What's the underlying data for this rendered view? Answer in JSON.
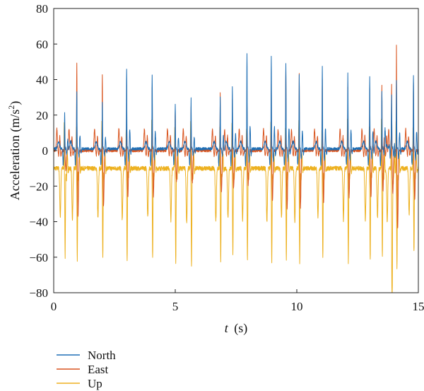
{
  "chart_data": {
    "type": "line",
    "xlabel_var": "t",
    "xlabel_unit": "(s)",
    "ylabel_main": "Acceleration (m/s",
    "ylabel_sup": "2",
    "ylabel_close": ")",
    "xlim": [
      0,
      15
    ],
    "ylim": [
      -80,
      80
    ],
    "xticks": [
      0,
      5,
      10,
      15
    ],
    "xtick_labels": [
      "0",
      "5",
      "10",
      "15"
    ],
    "yticks": [
      80,
      60,
      40,
      20,
      0,
      -20,
      -40,
      -60,
      -80
    ],
    "ytick_labels": [
      "80",
      "60",
      "40",
      "20",
      "0",
      "−20",
      "−40",
      "−60",
      "−80"
    ],
    "grid": false,
    "legend_position": "bottom-left, below plot",
    "series": [
      {
        "name": "North",
        "color": "#1f6fb5",
        "baseline": 1,
        "peaks": [
          20,
          32,
          26,
          45,
          41,
          25,
          28,
          29,
          35,
          54,
          52,
          48,
          42,
          46,
          43,
          40,
          32,
          29,
          38,
          42
        ]
      },
      {
        "name": "East",
        "color": "#d9541e",
        "baseline": 0,
        "peaks": [
          16,
          52,
          45,
          38,
          37,
          24,
          26,
          34,
          30,
          28,
          40,
          48,
          46,
          42,
          38,
          37,
          38,
          30,
          62,
          40
        ]
      },
      {
        "name": "Up",
        "color": "#edb120",
        "baseline": -10,
        "troughs": [
          -60,
          -62,
          -61,
          -62,
          -60,
          -63,
          -66,
          -64,
          -60,
          -62,
          -64,
          -61,
          -64,
          -60,
          -63,
          -62,
          -60,
          -64,
          -66,
          -57
        ]
      }
    ],
    "step_times": [
      0.45,
      0.95,
      2.0,
      3.0,
      4.05,
      5.0,
      5.65,
      6.85,
      7.35,
      7.95,
      8.95,
      9.55,
      10.1,
      11.05,
      12.1,
      13.0,
      13.5,
      13.9,
      14.1,
      14.8
    ]
  }
}
